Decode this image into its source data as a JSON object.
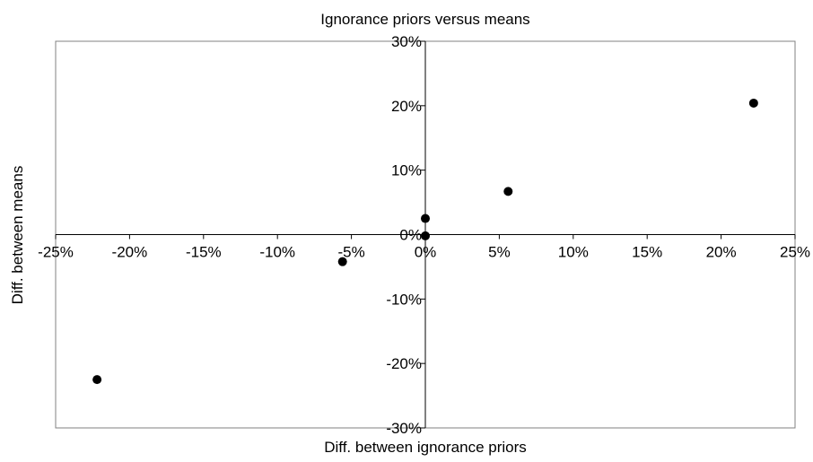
{
  "chart_data": {
    "type": "scatter",
    "title": "Ignorance priors versus means",
    "xlabel": "Diff. between ignorance priors",
    "ylabel": "Diff. between means",
    "xlim": [
      -0.25,
      0.25
    ],
    "ylim": [
      -0.3,
      0.3
    ],
    "x_ticks": [
      -0.25,
      -0.2,
      -0.15,
      -0.1,
      -0.05,
      0,
      0.05,
      0.1,
      0.15,
      0.2,
      0.25
    ],
    "x_tick_labels": [
      "-25%",
      "-20%",
      "-15%",
      "-10%",
      "-5%",
      "0%",
      "5%",
      "10%",
      "15%",
      "20%",
      "25%"
    ],
    "y_ticks": [
      0.3,
      0.2,
      0.1,
      0,
      -0.1,
      -0.2,
      -0.3
    ],
    "y_tick_labels": [
      "30%",
      "20%",
      "10%",
      "0%",
      "-10%",
      "-20%",
      "-30%"
    ],
    "grid": false,
    "legend": "none",
    "marker_color": "#000000",
    "points": [
      {
        "x": -0.222,
        "y": -0.225
      },
      {
        "x": -0.056,
        "y": -0.042
      },
      {
        "x": 0.0,
        "y": 0.025
      },
      {
        "x": 0.0,
        "y": -0.002
      },
      {
        "x": 0.056,
        "y": 0.067
      },
      {
        "x": 0.222,
        "y": 0.204
      }
    ]
  }
}
